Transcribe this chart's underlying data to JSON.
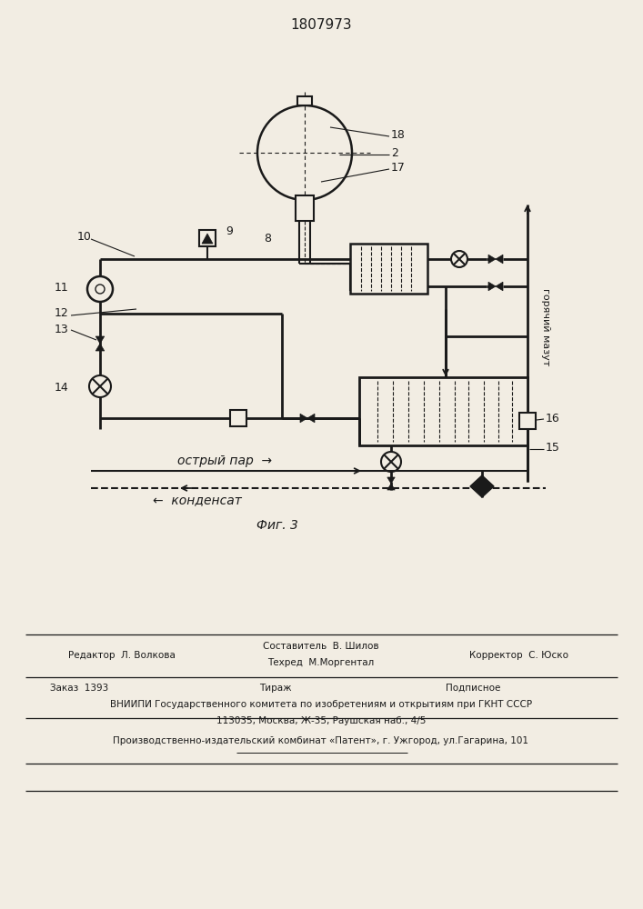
{
  "patent_number": "1807973",
  "fig_label": "Фиг. 3",
  "steam_label": "острый пар",
  "condensate_label": "конденсат",
  "hot_label": "горячий мазут",
  "bg_color": "#f2ede3",
  "line_color": "#1a1a1a",
  "label_2": "2",
  "label_8": "8",
  "label_9": "9",
  "label_10": "10",
  "label_11": "11",
  "label_12": "12",
  "label_13": "13",
  "label_14": "14",
  "label_15": "15",
  "label_16": "16",
  "label_17": "17",
  "label_18": "18",
  "editor_text": "Редактор  Л. Волкова",
  "composer_text1": "Составитель  В. Шилов",
  "composer_text2": "Техред  М.Моргентал",
  "corrector_text": "Корректор  С. Юско",
  "order_text": "Заказ  1393",
  "tiraj_text": "Тираж",
  "podpisnoe_text": "Подписное",
  "vniiipi_text": "ВНИИПИ Государственного комитета по изобретениям и открытиям при ГКНТ СССР",
  "address_text": "113035, Москва, Ж-35, Раушская наб., 4/5",
  "publisher_text": "Производственно-издательский комбинат «Патент», г. Ужгород, ул.Гагарина, 101"
}
